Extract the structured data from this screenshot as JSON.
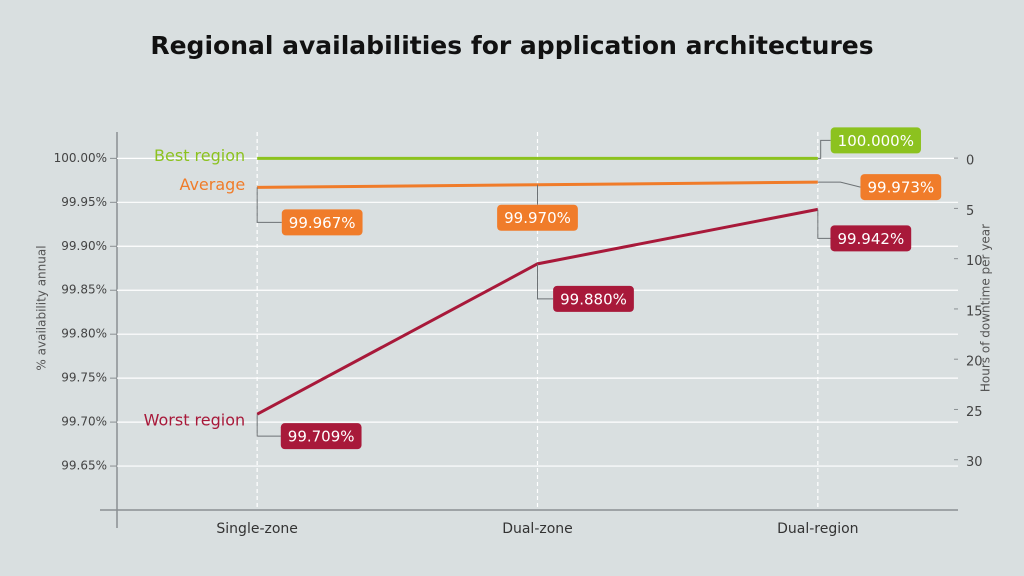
{
  "chart_data": {
    "type": "line",
    "title": "Regional availabilities for application architectures",
    "ylabel": "% availability annual",
    "y2label": "Hours of downtime per year",
    "categories": [
      "Single-zone",
      "Dual-zone",
      "Dual-region"
    ],
    "series": [
      {
        "name": "Best region",
        "color": "#8cc21f",
        "values": [
          100,
          100,
          100
        ],
        "value_labels": [
          null,
          null,
          "100.000%"
        ]
      },
      {
        "name": "Average",
        "color": "#f07c2a",
        "values": [
          99.967,
          99.97,
          99.973
        ],
        "value_labels": [
          "99.967%",
          "99.970%",
          "99.973%"
        ]
      },
      {
        "name": "Worst region",
        "color": "#a8193a",
        "values": [
          99.709,
          99.88,
          99.942
        ],
        "value_labels": [
          "99.709%",
          "99.880%",
          "99.942%"
        ]
      }
    ],
    "ylim": [
      99.6,
      100.03
    ],
    "yticks": [
      {
        "value": 99.65,
        "label": "99.65%"
      },
      {
        "value": 99.7,
        "label": "99.70%"
      },
      {
        "value": 99.75,
        "label": "99.75%"
      },
      {
        "value": 99.8,
        "label": "99.80%"
      },
      {
        "value": 99.85,
        "label": "99.85%"
      },
      {
        "value": 99.9,
        "label": "99.90%"
      },
      {
        "value": 99.95,
        "label": "99.95%"
      },
      {
        "value": 100,
        "label": "100.00%"
      }
    ],
    "y2lim": [
      35.0,
      -2.6
    ],
    "y2ticks": [
      0,
      5,
      10,
      15,
      20,
      25,
      30
    ],
    "grid": true
  }
}
